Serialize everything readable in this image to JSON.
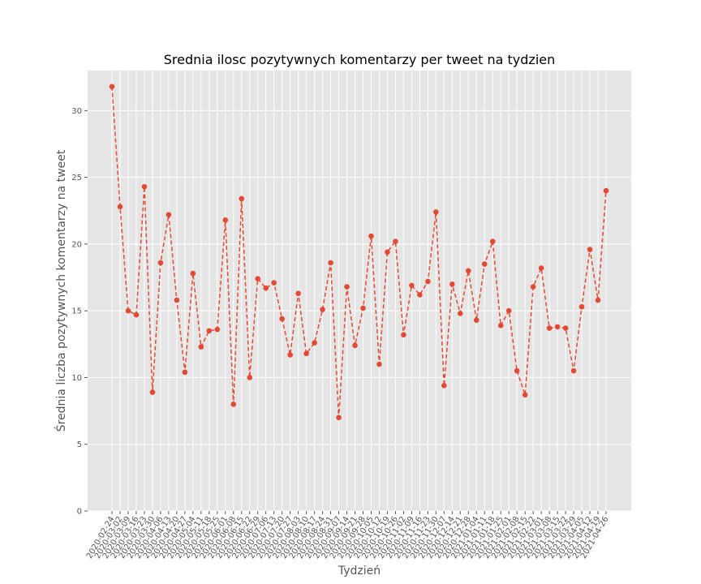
{
  "chart_data": {
    "type": "line",
    "title": "Srednia ilosc pozytywnych komentarzy per tweet na tydzien",
    "xlabel": "Tydzień",
    "ylabel": "Średnia liczba pozytywnych komentarzy na tweet",
    "ylim": [
      0,
      33
    ],
    "yticks": [
      0,
      5,
      10,
      15,
      20,
      25,
      30
    ],
    "grid": true,
    "line_style": "dashed",
    "marker": "circle",
    "colors": {
      "series": "#e24a33",
      "plot_bg": "#e5e5e5",
      "grid": "#ffffff",
      "text": "#555555"
    },
    "x": [
      "2020-02-24",
      "2020-03-02",
      "2020-03-09",
      "2020-03-16",
      "2020-03-23",
      "2020-03-30",
      "2020-04-06",
      "2020-04-13",
      "2020-04-20",
      "2020-04-27",
      "2020-05-04",
      "2020-05-11",
      "2020-05-18",
      "2020-05-25",
      "2020-06-01",
      "2020-06-08",
      "2020-06-15",
      "2020-06-22",
      "2020-06-29",
      "2020-07-06",
      "2020-07-13",
      "2020-07-20",
      "2020-07-27",
      "2020-08-03",
      "2020-08-10",
      "2020-08-17",
      "2020-08-24",
      "2020-08-31",
      "2020-09-07",
      "2020-09-14",
      "2020-09-21",
      "2020-09-28",
      "2020-10-05",
      "2020-10-12",
      "2020-10-19",
      "2020-10-26",
      "2020-11-02",
      "2020-11-09",
      "2020-11-16",
      "2020-11-23",
      "2020-11-30",
      "2020-12-07",
      "2020-12-14",
      "2020-12-21",
      "2020-12-28",
      "2021-01-04",
      "2021-01-11",
      "2021-01-18",
      "2021-01-25",
      "2021-02-01",
      "2021-02-08",
      "2021-02-15",
      "2021-02-22",
      "2021-03-01",
      "2021-03-08",
      "2021-03-15",
      "2021-03-22",
      "2021-03-29",
      "2021-04-05",
      "2021-04-12",
      "2021-04-19",
      "2021-04-26"
    ],
    "series": [
      {
        "values": [
          31.8,
          22.8,
          15.0,
          14.7,
          24.3,
          8.9,
          18.6,
          22.2,
          15.8,
          10.4,
          17.8,
          12.3,
          13.5,
          13.6,
          21.8,
          8.0,
          23.4,
          10.0,
          17.4,
          16.7,
          17.1,
          14.4,
          11.7,
          16.3,
          11.8,
          12.6,
          15.1,
          18.6,
          7.0,
          16.8,
          12.4,
          15.2,
          20.6,
          11.0,
          19.4,
          20.2,
          13.2,
          16.9,
          16.2,
          17.2,
          22.4,
          9.4,
          17.0,
          14.8,
          18.0,
          14.3,
          18.5,
          20.2,
          13.9,
          15.0,
          10.5,
          8.7,
          16.8,
          18.2,
          13.7,
          13.8,
          13.7,
          10.5,
          15.3,
          19.6,
          15.8,
          24.0
        ]
      }
    ]
  }
}
